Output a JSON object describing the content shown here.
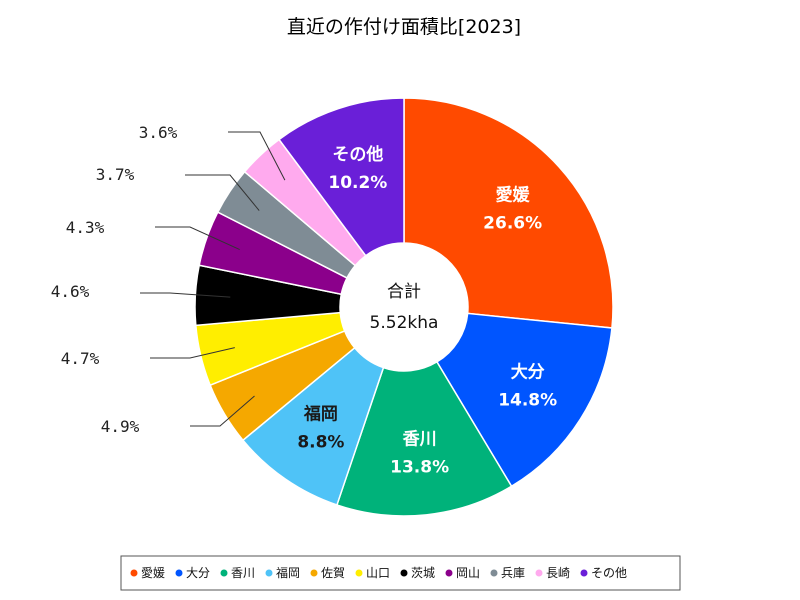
{
  "chart_data": {
    "type": "pie",
    "title": "直近の作付け面積比[2023]",
    "center_label": "合計",
    "center_value": "5.52kha",
    "slices": [
      {
        "name": "愛媛",
        "value": 26.6,
        "label": "26.6%",
        "color": "#ff4a00"
      },
      {
        "name": "大分",
        "value": 14.8,
        "label": "14.8%",
        "color": "#0055ff"
      },
      {
        "name": "香川",
        "value": 13.8,
        "label": "13.8%",
        "color": "#00b27a"
      },
      {
        "name": "福岡",
        "value": 8.8,
        "label": "8.8%",
        "color": "#4fc3f7"
      },
      {
        "name": "佐賀",
        "value": 4.9,
        "label": "4.9%",
        "color": "#f5a800"
      },
      {
        "name": "山口",
        "value": 4.7,
        "label": "4.7%",
        "color": "#ffee00"
      },
      {
        "name": "茨城",
        "value": 4.6,
        "label": "4.6%",
        "color": "#000000"
      },
      {
        "name": "岡山",
        "value": 4.3,
        "label": "4.3%",
        "color": "#8b008b"
      },
      {
        "name": "兵庫",
        "value": 3.7,
        "label": "3.7%",
        "color": "#7f8c95"
      },
      {
        "name": "長崎",
        "value": 3.6,
        "label": "3.6%",
        "color": "#ffaaee"
      },
      {
        "name": "その他",
        "value": 10.2,
        "label": "10.2%",
        "color": "#6a1fd8"
      }
    ],
    "legend_position": "bottom"
  }
}
